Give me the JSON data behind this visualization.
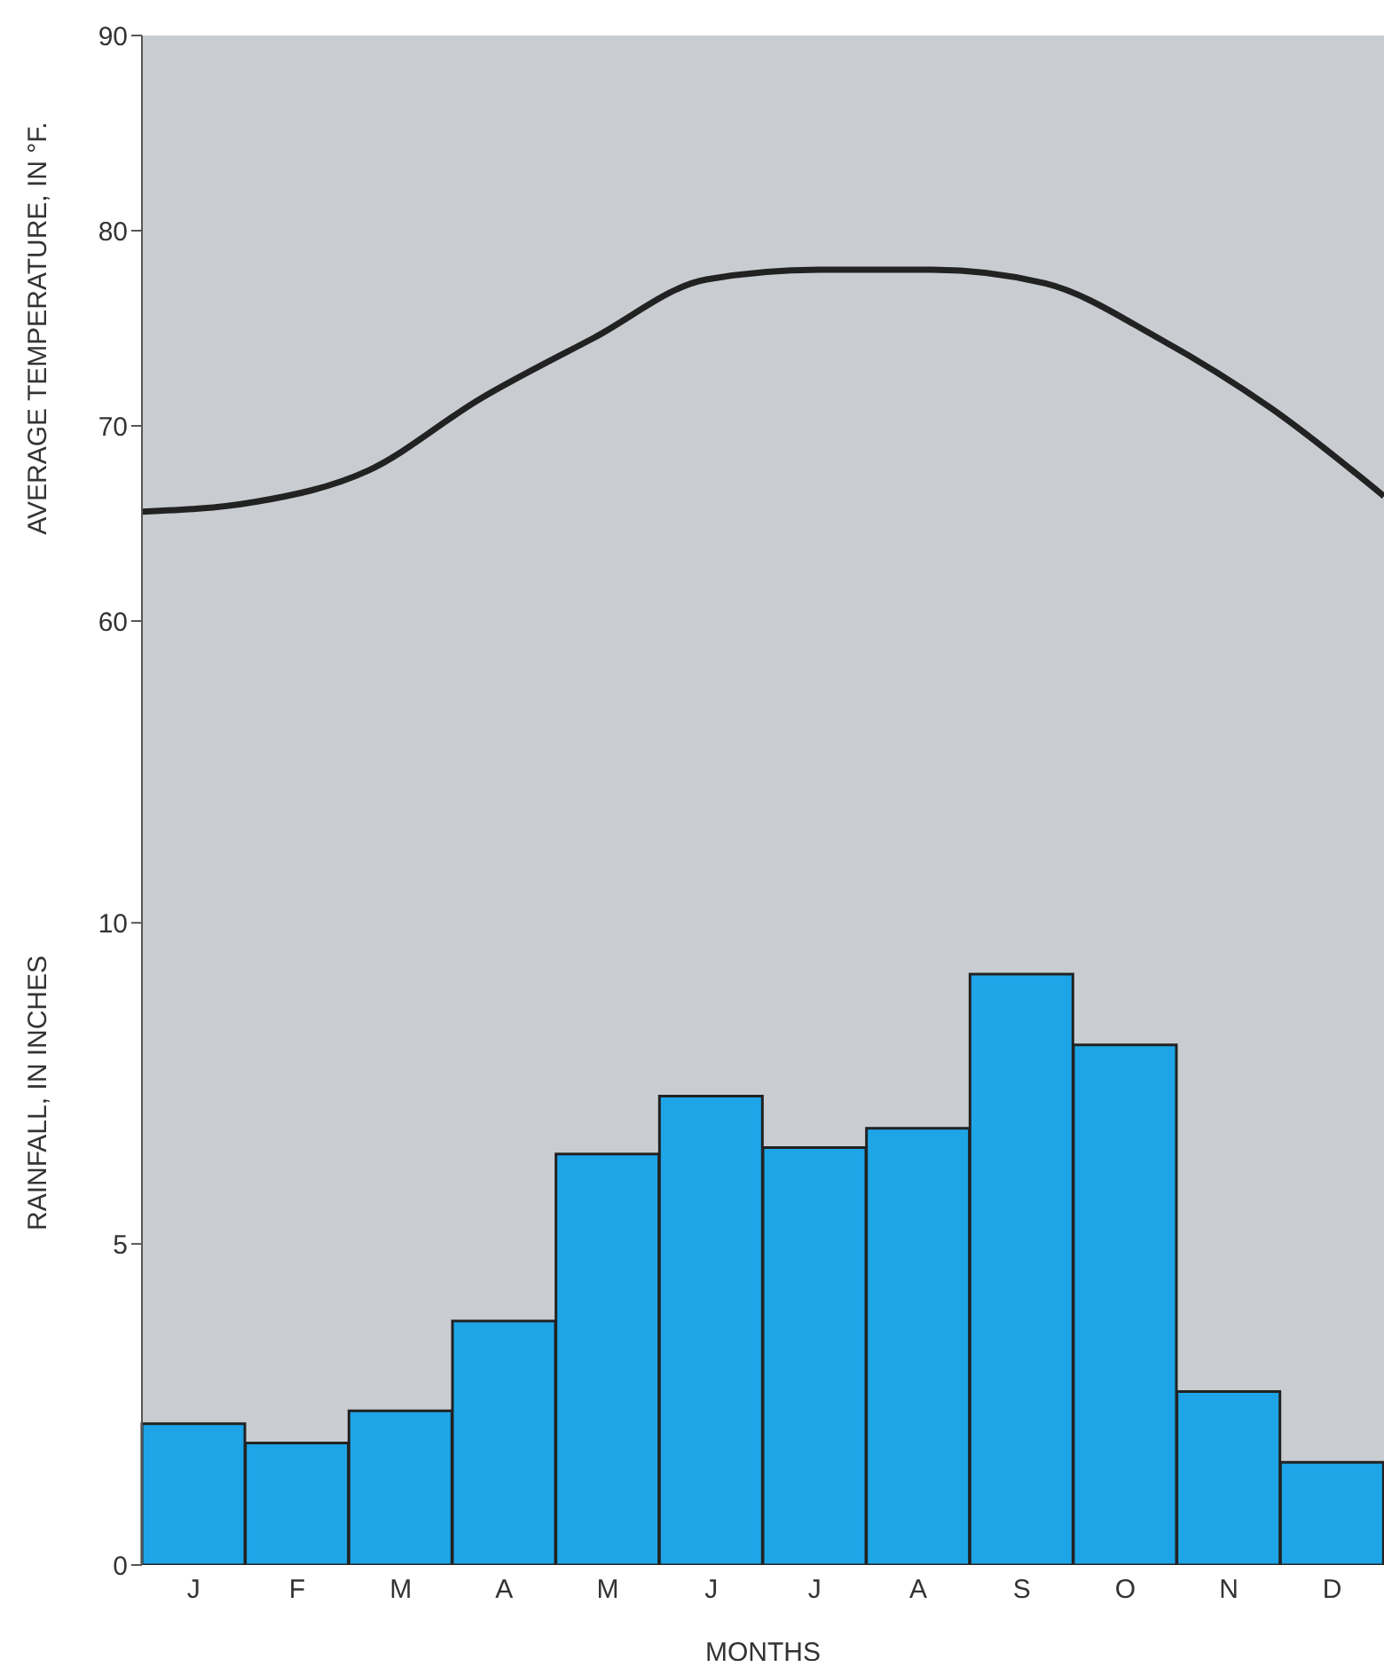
{
  "chart_data": [
    {
      "type": "line",
      "ylabel": "AVERAGE TEMPERATURE, IN °F.",
      "categories": [
        null,
        null,
        null,
        null,
        null,
        null,
        null,
        null,
        null,
        null,
        null,
        null
      ],
      "series": [
        {
          "color": "#222222",
          "values": [
            65.6,
            66.1,
            67.7,
            71.4,
            74.5,
            77.5,
            78,
            78,
            77.3,
            74.5,
            70.9,
            66.4
          ]
        }
      ],
      "ylim": [
        60,
        90
      ],
      "yticks": [
        60,
        70,
        80,
        90
      ],
      "tick_labels": "y",
      "marker": "none",
      "line_style": "solid"
    },
    {
      "type": "bar",
      "ylabel": "RAINFALL, IN INCHES",
      "xlabel": "MONTHS",
      "categories": [
        "J",
        "F",
        "M",
        "A",
        "M",
        "J",
        "J",
        "A",
        "S",
        "O",
        "N",
        "D"
      ],
      "series": [
        {
          "color": "#1ea5e8",
          "values": [
            2.2,
            1.9,
            2.4,
            3.8,
            6.4,
            7.3,
            6.5,
            6.8,
            9.2,
            8.1,
            2.7,
            1.6
          ]
        }
      ],
      "ylim": [
        0,
        14.7
      ],
      "yticks": [
        0,
        5,
        10
      ]
    }
  ]
}
